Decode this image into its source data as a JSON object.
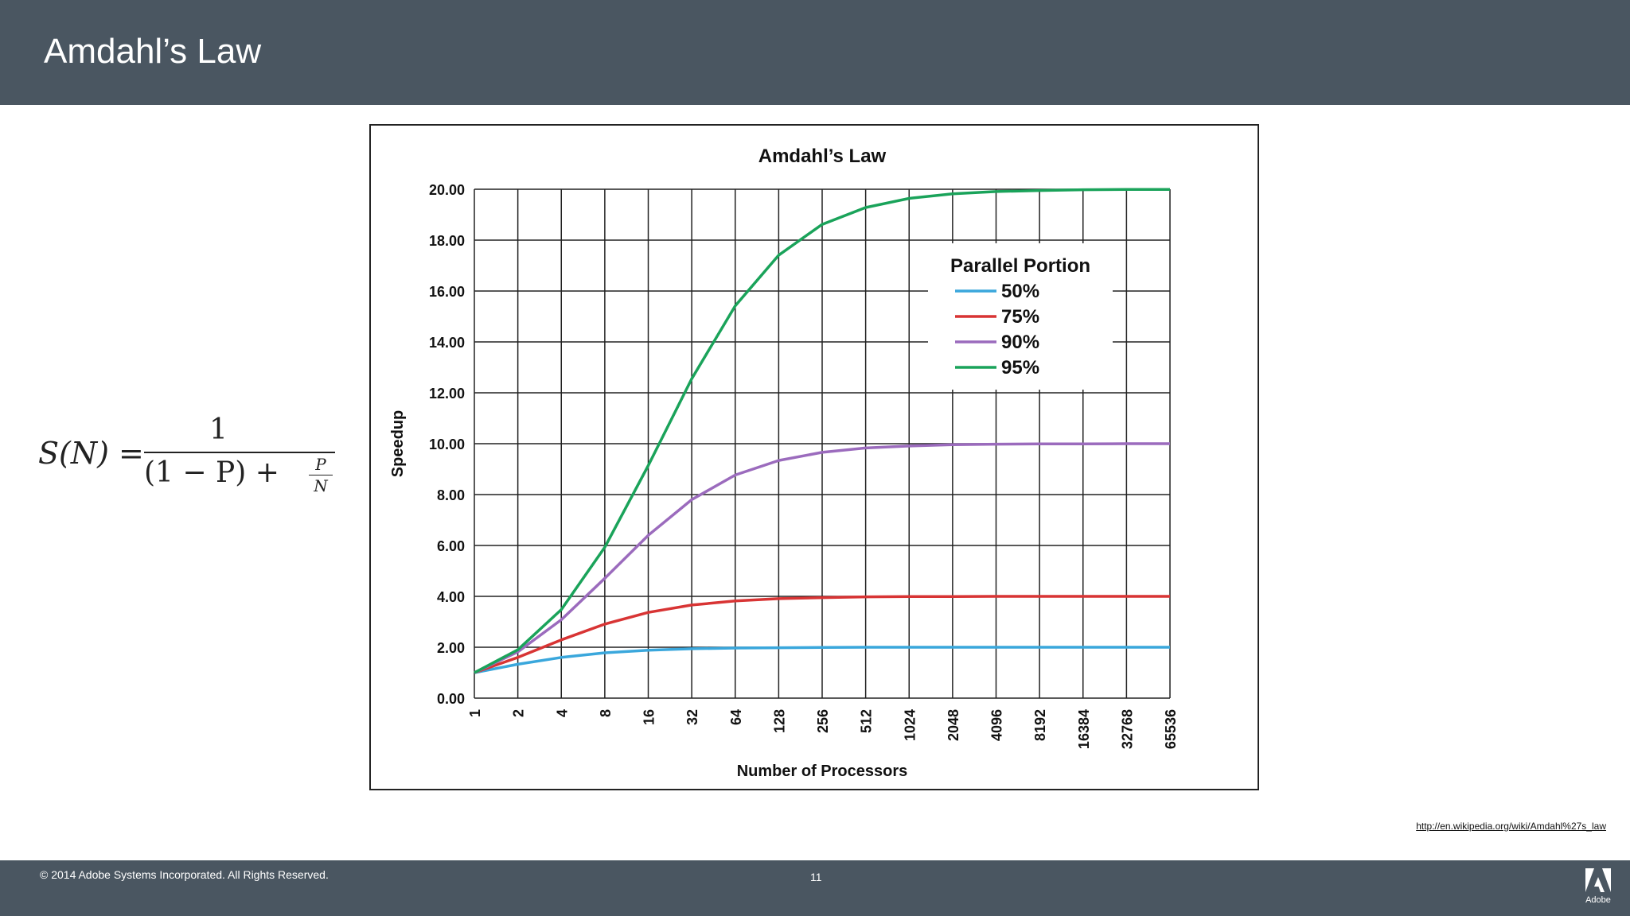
{
  "slide": {
    "title": "Amdahl’s Law",
    "source_url": "http://en.wikipedia.org/wiki/Amdahl%27s_law"
  },
  "formula": {
    "lhs": "S(N)",
    "eq": "=",
    "numerator": "1",
    "denominator_prefix": "(1 − P) + ",
    "small_num": "P",
    "small_den": "N"
  },
  "footer": {
    "copyright": "© 2014 Adobe Systems Incorporated.  All Rights Reserved.",
    "page_number": "11",
    "logo_label": "Adobe"
  },
  "chart_data": {
    "type": "line",
    "title": "Amdahl’s Law",
    "xlabel": "Number of Processors",
    "ylabel": "Speedup",
    "x": [
      "1",
      "2",
      "4",
      "8",
      "16",
      "32",
      "64",
      "128",
      "256",
      "512",
      "1024",
      "2048",
      "4096",
      "8192",
      "16384",
      "32768",
      "65536"
    ],
    "ylim": [
      0,
      20
    ],
    "yticks": [
      "0.00",
      "2.00",
      "4.00",
      "6.00",
      "8.00",
      "10.00",
      "12.00",
      "14.00",
      "16.00",
      "18.00",
      "20.00"
    ],
    "grid": true,
    "legend_title": "Parallel Portion",
    "legend_position": "top-right",
    "series": [
      {
        "name": "50%",
        "color": "#3aa7dc",
        "values": [
          1.0,
          1.33,
          1.6,
          1.78,
          1.88,
          1.94,
          1.97,
          1.98,
          1.99,
          2.0,
          2.0,
          2.0,
          2.0,
          2.0,
          2.0,
          2.0,
          2.0
        ]
      },
      {
        "name": "75%",
        "color": "#d83434",
        "values": [
          1.0,
          1.6,
          2.29,
          2.91,
          3.37,
          3.66,
          3.82,
          3.91,
          3.95,
          3.98,
          3.99,
          3.99,
          4.0,
          4.0,
          4.0,
          4.0,
          4.0
        ]
      },
      {
        "name": "90%",
        "color": "#9b6bbd",
        "values": [
          1.0,
          1.82,
          3.08,
          4.71,
          6.4,
          7.8,
          8.77,
          9.34,
          9.66,
          9.83,
          9.91,
          9.96,
          9.98,
          9.99,
          9.99,
          10.0,
          10.0
        ]
      },
      {
        "name": "95%",
        "color": "#1aa35a",
        "values": [
          1.0,
          1.9,
          3.48,
          5.93,
          9.14,
          12.55,
          15.42,
          17.41,
          18.62,
          19.28,
          19.64,
          19.82,
          19.91,
          19.95,
          19.98,
          19.99,
          19.99
        ]
      }
    ]
  }
}
